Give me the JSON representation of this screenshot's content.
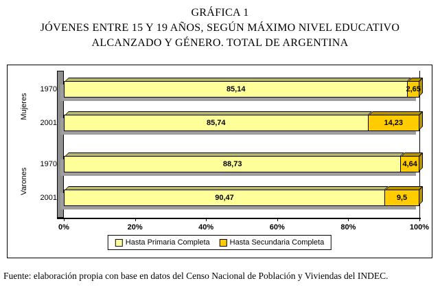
{
  "title": {
    "line1": "GRÁFICA 1",
    "line2": "JÓVENES ENTRE 15 Y 19 AÑOS, SEGÚN MÁXIMO NIVEL EDUCATIVO",
    "line3": "ALCANZADO Y GÉNERO. TOTAL DE ARGENTINA"
  },
  "chart_data": {
    "type": "bar",
    "orientation": "horizontal",
    "stacked": true,
    "percent_axis": true,
    "categories": [
      {
        "group": "Mujeres",
        "year": "1970"
      },
      {
        "group": "Mujeres",
        "year": "2001"
      },
      {
        "group": "Varones",
        "year": "1970"
      },
      {
        "group": "Varones",
        "year": "2001"
      }
    ],
    "group_labels": [
      "Mujeres",
      "Varones"
    ],
    "series": [
      {
        "name": "Hasta Primaria Completa",
        "color": "#FFFF99",
        "values": [
          85.14,
          85.74,
          88.73,
          90.47
        ],
        "value_labels": [
          "85,14",
          "85,74",
          "88,73",
          "90,47"
        ]
      },
      {
        "name": "Hasta Secundaria Completa",
        "color": "#FFCC00",
        "values": [
          2.65,
          14.23,
          4.64,
          9.5
        ],
        "value_labels": [
          "2,65",
          "14,23",
          "4,64",
          "9,5"
        ]
      }
    ],
    "x_ticks": [
      "0%",
      "20%",
      "40%",
      "60%",
      "80%",
      "100%"
    ],
    "xlim": [
      0,
      100
    ],
    "legend_position": "bottom",
    "wall_color": "#8F8F8F"
  },
  "source": "Fuente: elaboración propia con base en datos del Censo Nacional de Población y Viviendas del INDEC."
}
